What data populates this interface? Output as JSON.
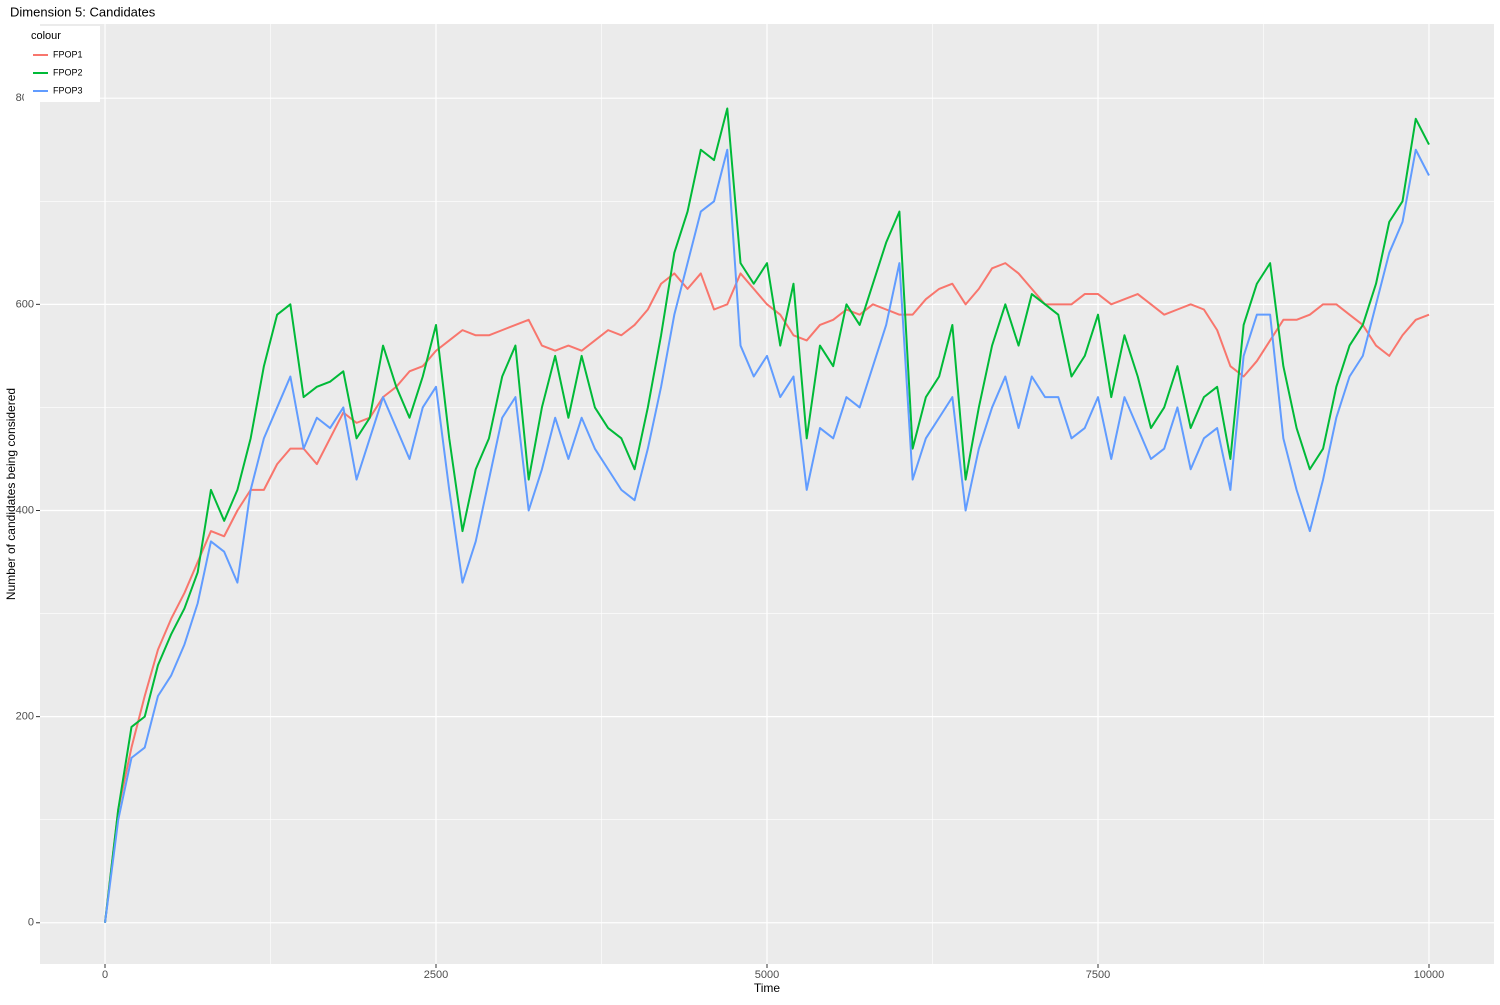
{
  "chart_data": {
    "type": "line",
    "title": "Dimension 5: Candidates",
    "x_label": "Time",
    "y_label": "Number of candidates being considered",
    "legend_title": "colour",
    "legend_position": "top-left",
    "grid": true,
    "panel_color": "#EBEBEB",
    "xlim": [
      -491,
      10491
    ],
    "ylim": [
      -40,
      872
    ],
    "xticks": [
      0,
      2500,
      5000,
      7500,
      10000
    ],
    "yticks": [
      0,
      200,
      400,
      600,
      800
    ],
    "x_minor_ticks": [
      1250,
      3750,
      6250,
      8750
    ],
    "y_minor_ticks": [
      100,
      300,
      500,
      700
    ],
    "x": [
      0,
      100,
      200,
      300,
      400,
      500,
      600,
      700,
      800,
      900,
      1000,
      1100,
      1200,
      1300,
      1400,
      1500,
      1600,
      1700,
      1800,
      1900,
      2000,
      2100,
      2200,
      2300,
      2400,
      2500,
      2600,
      2700,
      2800,
      2900,
      3000,
      3100,
      3200,
      3300,
      3400,
      3500,
      3600,
      3700,
      3800,
      3900,
      4000,
      4100,
      4200,
      4300,
      4400,
      4500,
      4600,
      4700,
      4800,
      4900,
      5000,
      5100,
      5200,
      5300,
      5400,
      5500,
      5600,
      5700,
      5800,
      5900,
      6000,
      6100,
      6200,
      6300,
      6400,
      6500,
      6600,
      6700,
      6800,
      6900,
      7000,
      7100,
      7200,
      7300,
      7400,
      7500,
      7600,
      7700,
      7800,
      7900,
      8000,
      8100,
      8200,
      8300,
      8400,
      8500,
      8600,
      8700,
      8800,
      8900,
      9000,
      9100,
      9200,
      9300,
      9400,
      9500,
      9600,
      9700,
      9800,
      9900,
      10000
    ],
    "series": [
      {
        "name": "FPOP1",
        "color": "#F8766D",
        "values": [
          0,
          110,
          170,
          220,
          265,
          295,
          320,
          350,
          380,
          375,
          400,
          420,
          420,
          445,
          460,
          460,
          445,
          470,
          495,
          485,
          490,
          510,
          520,
          535,
          540,
          555,
          565,
          575,
          570,
          570,
          575,
          580,
          585,
          560,
          555,
          560,
          555,
          565,
          575,
          570,
          580,
          595,
          620,
          630,
          615,
          630,
          595,
          600,
          630,
          615,
          600,
          590,
          570,
          565,
          580,
          585,
          595,
          590,
          600,
          595,
          590,
          590,
          605,
          615,
          620,
          600,
          615,
          635,
          640,
          630,
          615,
          600,
          600,
          600,
          610,
          610,
          600,
          605,
          610,
          600,
          590,
          595,
          600,
          595,
          575,
          540,
          530,
          545,
          565,
          585,
          585,
          590,
          600,
          600,
          590,
          580,
          560,
          550,
          570,
          585,
          590
        ]
      },
      {
        "name": "FPOP2",
        "color": "#00BA38",
        "values": [
          0,
          110,
          190,
          200,
          250,
          280,
          305,
          340,
          420,
          390,
          420,
          470,
          540,
          590,
          600,
          510,
          520,
          525,
          535,
          470,
          490,
          560,
          520,
          490,
          530,
          580,
          470,
          380,
          440,
          470,
          530,
          560,
          430,
          500,
          550,
          490,
          550,
          500,
          480,
          470,
          440,
          500,
          570,
          650,
          690,
          750,
          740,
          790,
          640,
          620,
          640,
          560,
          620,
          470,
          560,
          540,
          600,
          580,
          620,
          660,
          690,
          460,
          510,
          530,
          580,
          430,
          500,
          560,
          600,
          560,
          610,
          600,
          590,
          530,
          550,
          590,
          510,
          570,
          530,
          480,
          500,
          540,
          480,
          510,
          520,
          450,
          580,
          620,
          640,
          540,
          480,
          440,
          460,
          520,
          560,
          580,
          620,
          680,
          700,
          780,
          755
        ]
      },
      {
        "name": "FPOP3",
        "color": "#619CFF",
        "values": [
          0,
          100,
          160,
          170,
          220,
          240,
          270,
          310,
          370,
          360,
          330,
          420,
          470,
          500,
          530,
          460,
          490,
          480,
          500,
          430,
          470,
          510,
          480,
          450,
          500,
          520,
          420,
          330,
          370,
          430,
          490,
          510,
          400,
          440,
          490,
          450,
          490,
          460,
          440,
          420,
          410,
          460,
          520,
          590,
          640,
          690,
          700,
          750,
          560,
          530,
          550,
          510,
          530,
          420,
          480,
          470,
          510,
          500,
          540,
          580,
          640,
          430,
          470,
          490,
          510,
          400,
          460,
          500,
          530,
          480,
          530,
          510,
          510,
          470,
          480,
          510,
          450,
          510,
          480,
          450,
          460,
          500,
          440,
          470,
          480,
          420,
          550,
          590,
          590,
          470,
          420,
          380,
          430,
          490,
          530,
          550,
          600,
          650,
          680,
          750,
          725
        ]
      }
    ]
  }
}
